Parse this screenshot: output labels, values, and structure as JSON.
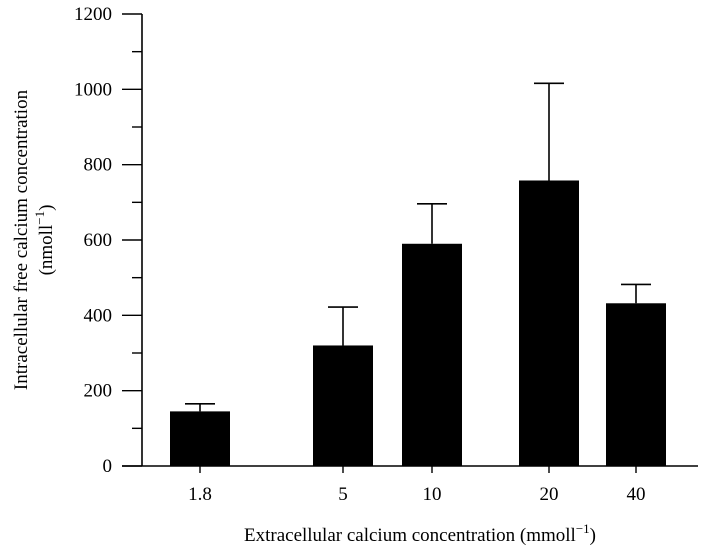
{
  "chart_data": {
    "type": "bar",
    "categories": [
      "1.8",
      "5",
      "10",
      "20",
      "40"
    ],
    "values": [
      145,
      320,
      590,
      758,
      432
    ],
    "errors": [
      20,
      102,
      106,
      258,
      50
    ],
    "xlabel": "Extracellular calcium concentration (mmoll",
    "xlabel_sup": "−1",
    "xlabel_end": ")",
    "ylabel_line1": "Intracellular free calcium concentration",
    "ylabel_line2": "(nmoll",
    "ylabel_sup": "−1",
    "ylabel_end": ")",
    "ylim": [
      0,
      1200
    ],
    "yticks": [
      0,
      200,
      400,
      600,
      800,
      1000,
      1200
    ],
    "yticks_minor": [
      100,
      300,
      500,
      700,
      900,
      1100
    ],
    "bar_color": "#000000"
  }
}
